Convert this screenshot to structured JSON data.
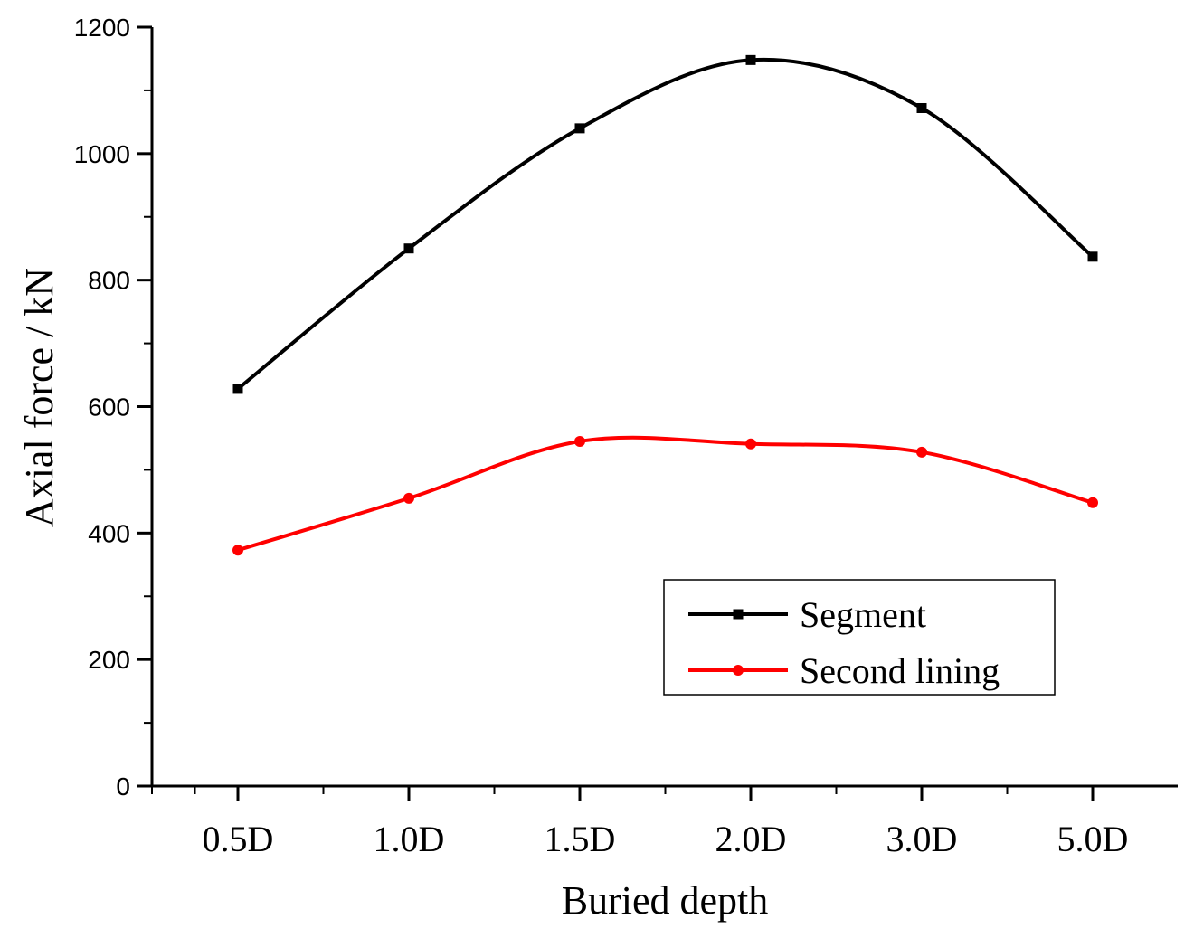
{
  "chart_data": {
    "type": "line",
    "categories": [
      "0.5D",
      "1.0D",
      "1.5D",
      "2.0D",
      "3.0D",
      "5.0D"
    ],
    "series": [
      {
        "name": "Segment",
        "values": [
          628,
          850,
          1040,
          1148,
          1072,
          837
        ],
        "color": "#000000",
        "marker": "square"
      },
      {
        "name": "Second lining",
        "values": [
          373,
          455,
          545,
          541,
          528,
          448
        ],
        "color": "#ff0000",
        "marker": "circle"
      }
    ],
    "xlabel": "Buried depth",
    "ylabel": "Axial force / kN",
    "ylim": [
      0,
      1200
    ],
    "yticks": [
      0,
      200,
      400,
      600,
      800,
      1000,
      1200
    ],
    "grid": false,
    "legend_position": "bottom-right",
    "smooth": true
  }
}
